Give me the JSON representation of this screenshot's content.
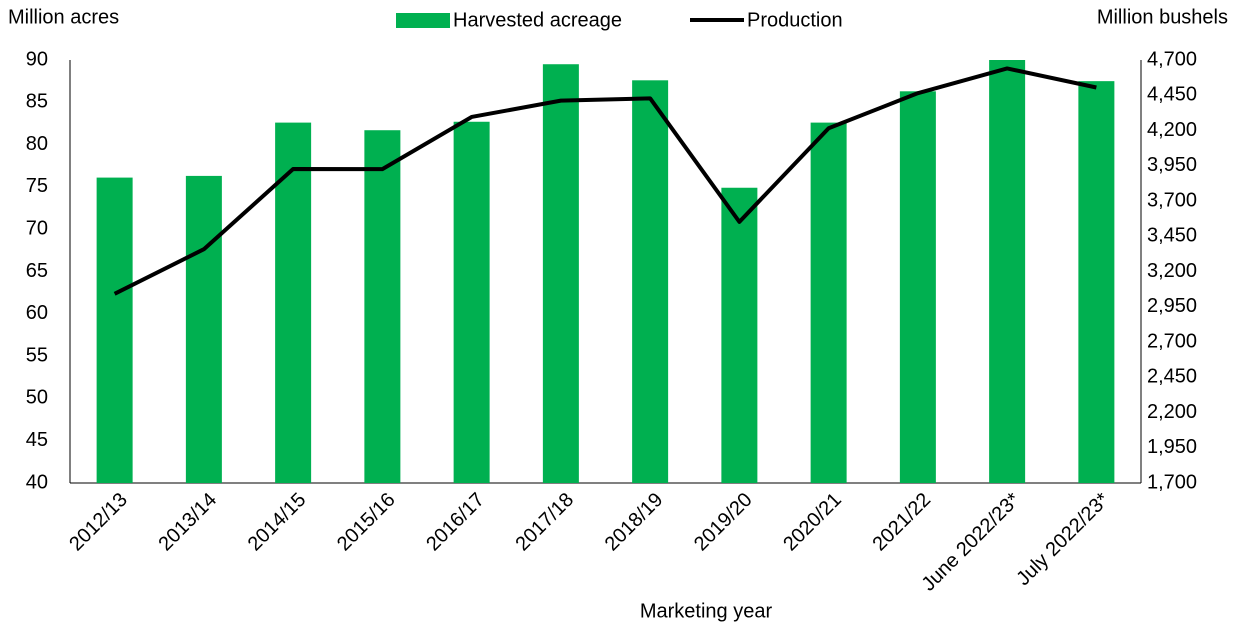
{
  "chart_data": {
    "type": "bar_line",
    "y_label": "Million acres",
    "y2_label": "Million bushels",
    "x_label": "Marketing year",
    "categories": [
      "2012/13",
      "2013/14",
      "2014/15",
      "2015/16",
      "2016/17",
      "2017/18",
      "2018/19",
      "2019/20",
      "2020/21",
      "2021/22",
      "June 2022/23*",
      "July 2022/23*"
    ],
    "series": [
      {
        "name": "Harvested acreage",
        "type": "bar",
        "color": "#00b050",
        "values": [
          76.1,
          76.3,
          82.6,
          81.7,
          82.7,
          89.5,
          87.6,
          74.9,
          82.6,
          86.3,
          90.0,
          87.5
        ]
      },
      {
        "name": "Production",
        "type": "line",
        "axis": "y2",
        "color": "#000000",
        "values": [
          3042,
          3358,
          3927,
          3926,
          4296,
          4412,
          4428,
          3552,
          4216,
          4465,
          4640,
          4505
        ]
      }
    ],
    "ylim": [
      40,
      90
    ],
    "yticks": [
      40,
      45,
      50,
      55,
      60,
      65,
      70,
      75,
      80,
      85,
      90
    ],
    "y2lim": [
      1700,
      4700
    ],
    "y2ticks": [
      {
        "value": 1700,
        "label": "1,700"
      },
      {
        "value": 1950,
        "label": "1,950"
      },
      {
        "value": 2200,
        "label": "2,200"
      },
      {
        "value": 2450,
        "label": "2,450"
      },
      {
        "value": 2700,
        "label": "2,700"
      },
      {
        "value": 2950,
        "label": "2,950"
      },
      {
        "value": 3200,
        "label": "3,200"
      },
      {
        "value": 3450,
        "label": "3,450"
      },
      {
        "value": 3700,
        "label": "3,700"
      },
      {
        "value": 3950,
        "label": "3,950"
      },
      {
        "value": 4200,
        "label": "4,200"
      },
      {
        "value": 4450,
        "label": "4,450"
      },
      {
        "value": 4700,
        "label": "4,700"
      }
    ],
    "grid": false,
    "legend": "top"
  }
}
